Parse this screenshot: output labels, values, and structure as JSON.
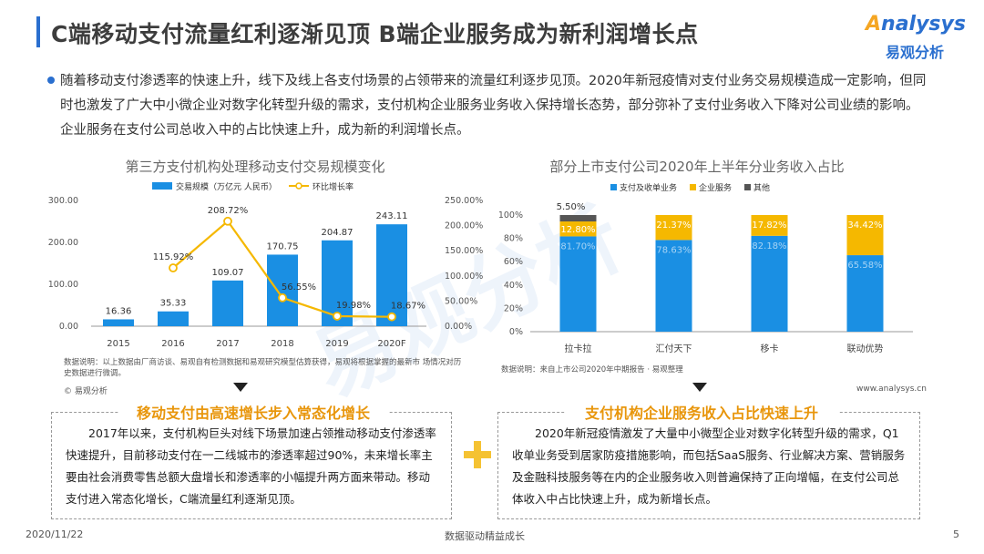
{
  "header": {
    "title": "C端移动支付流量红利逐渐见顶 B端企业服务成为新利润增长点",
    "logo_en_prefix": "A",
    "logo_en_rest": "nalysys",
    "logo_cn": "易观分析"
  },
  "intro": "随着移动支付渗透率的快速上升，线下及线上各支付场景的占领带来的流量红利逐步见顶。2020年新冠疫情对支付业务交易规模造成一定影响，但同时也激发了广大中小微企业对数字化转型升级的需求，支付机构企业服务业务收入保持增长态势，部分弥补了支付业务收入下降对公司业绩的影响。企业服务在支付公司总收入中的占比快速上升，成为新的利润增长点。",
  "left_chart": {
    "title": "第三方支付机构处理移动支付交易规模变化",
    "legend_bar": "交易规模（万亿元 人民币）",
    "legend_line": "环比增长率",
    "note": "数据说明：以上数据由厂商访谈、易观自有检测数据和易观研究模型估算获得，易观将根据掌握的最新市 场情况对历史数据进行微调。",
    "source": "© 易观分析"
  },
  "right_chart": {
    "title": "部分上市支付公司2020年上半年分业务收入占比",
    "note": "数据说明：来自上市公司2020年中期报告 · 易观整理",
    "website": "www.analysys.cn"
  },
  "chart_data": [
    {
      "type": "bar",
      "title": "第三方支付机构处理移动支付交易规模变化",
      "categories": [
        "2015",
        "2016",
        "2017",
        "2018",
        "2019",
        "2020F"
      ],
      "series": [
        {
          "name": "交易规模（万亿元 人民币）",
          "values": [
            16.36,
            35.33,
            109.07,
            170.75,
            204.87,
            243.11
          ],
          "labels": [
            "16.36",
            "35.33",
            "109.07",
            "170.75",
            "204.87",
            "243.11"
          ],
          "color": "#1a8fe3"
        },
        {
          "name": "环比增长率",
          "type": "line",
          "axis": "right",
          "values": [
            null,
            115.92,
            208.72,
            56.55,
            19.98,
            18.67
          ],
          "labels": [
            "",
            "115.92%",
            "208.72%",
            "56.55%",
            "19.98%",
            "18.67%"
          ],
          "color": "#f5b800"
        }
      ],
      "ylim": [
        0,
        300
      ],
      "yticks": [
        "0.00",
        "100.00",
        "200.00",
        "300.00"
      ],
      "y2lim": [
        0,
        250
      ],
      "y2ticks": [
        "0.00%",
        "50.00%",
        "100.00%",
        "150.00%",
        "200.00%",
        "250.00%"
      ],
      "legend": "top"
    },
    {
      "type": "bar",
      "stacked": true,
      "title": "部分上市支付公司2020年上半年分业务收入占比",
      "categories": [
        "拉卡拉",
        "汇付天下",
        "移卡",
        "联动优势"
      ],
      "series": [
        {
          "name": "支付及收单业务",
          "values": [
            81.7,
            78.63,
            82.18,
            65.58
          ],
          "labels": [
            "81.70%",
            "78.63%",
            "82.18%",
            "65.58%"
          ],
          "color": "#1a8fe3"
        },
        {
          "name": "企业服务",
          "values": [
            12.8,
            21.37,
            17.82,
            34.42
          ],
          "labels": [
            "12.80%",
            "21.37%",
            "17.82%",
            "34.42%"
          ],
          "color": "#f5b800"
        },
        {
          "name": "其他",
          "values": [
            5.5,
            0,
            0,
            0
          ],
          "labels": [
            "5.50%",
            "",
            "",
            ""
          ],
          "color": "#555555"
        }
      ],
      "ylim": [
        0,
        100
      ],
      "yticks": [
        "0%",
        "20%",
        "40%",
        "60%",
        "80%",
        "100%"
      ],
      "legend": "top"
    }
  ],
  "boxes": {
    "left_title": "移动支付由高速增长步入常态化增长",
    "left_text": "2017年以来，支付机构巨头对线下场景加速占领推动移动支付渗透率快速提升，目前移动支付在一二线城市的渗透率超过90%，未来增长率主要由社会消费零售总额大盘增长和渗透率的小幅提升两方面来带动。移动支付进入常态化增长，C端流量红利逐渐见顶。",
    "right_title": "支付机构企业服务收入占比快速上升",
    "right_text": "2020年新冠疫情激发了大量中小微型企业对数字化转型升级的需求，Q1收单业务受到居家防疫措施影响，而包括SaaS服务、行业解决方案、营销服务及金融科技服务等在内的企业服务收入则普遍保持了正向增幅，在支付公司总体收入中占比快速上升，成为新增长点。"
  },
  "footer": {
    "date": "2020/11/22",
    "slogan": "数据驱动精益成长",
    "page": "5"
  },
  "colors": {
    "accent": "#2a6fcf",
    "bar_blue": "#1a8fe3",
    "line_yellow": "#f5b800",
    "box_title": "#e8960c"
  }
}
